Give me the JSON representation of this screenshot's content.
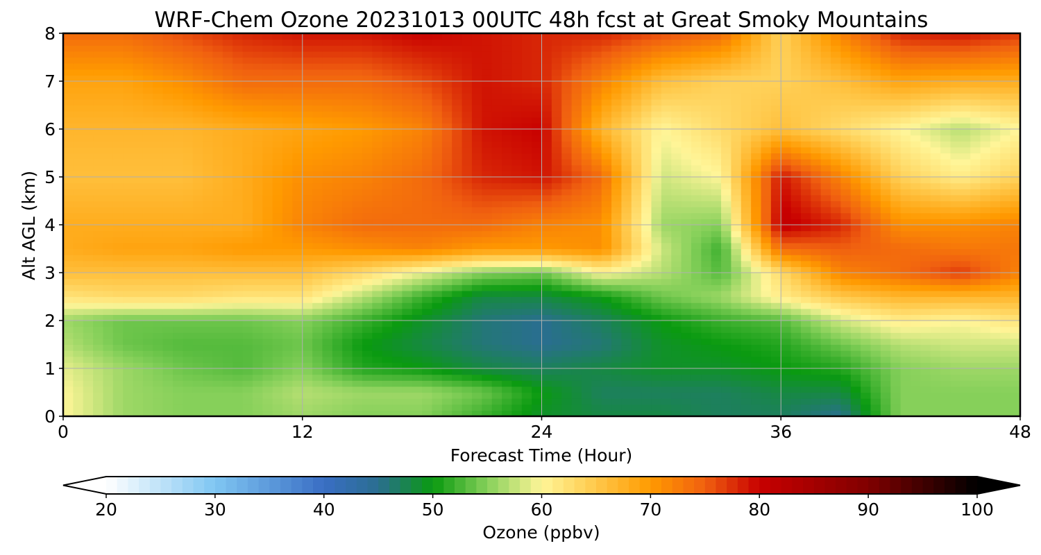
{
  "chart_data": {
    "type": "heatmap",
    "title": "WRF-Chem Ozone  20231013 00UTC 48h fcst at Great Smoky Mountains",
    "xlabel": "Forecast Time (Hour)",
    "ylabel": "Alt AGL (km)",
    "xlim": [
      0,
      48
    ],
    "ylim": [
      0,
      8
    ],
    "xticks": [
      "0",
      "12",
      "24",
      "36",
      "48"
    ],
    "yticks": [
      "0",
      "1",
      "2",
      "3",
      "4",
      "5",
      "6",
      "7",
      "8"
    ],
    "grid": true,
    "colorbar": {
      "label": "Ozone  (ppbv)",
      "min": 20,
      "max": 100,
      "ticks": [
        "20",
        "30",
        "40",
        "50",
        "60",
        "70",
        "80",
        "90",
        "100"
      ],
      "extend": "both",
      "colors": [
        {
          "v": 20,
          "c": "#ffffff"
        },
        {
          "v": 30,
          "c": "#7fc6f2"
        },
        {
          "v": 40,
          "c": "#3a6ec4"
        },
        {
          "v": 45,
          "c": "#2a6e90"
        },
        {
          "v": 50,
          "c": "#0a9a10"
        },
        {
          "v": 55,
          "c": "#86d05a"
        },
        {
          "v": 60,
          "c": "#fff598"
        },
        {
          "v": 65,
          "c": "#ffc84a"
        },
        {
          "v": 70,
          "c": "#ff9a00"
        },
        {
          "v": 75,
          "c": "#f06010"
        },
        {
          "v": 80,
          "c": "#c80000"
        },
        {
          "v": 90,
          "c": "#800000"
        },
        {
          "v": 100,
          "c": "#000000"
        }
      ]
    },
    "x_hours": [
      0,
      3,
      6,
      9,
      12,
      15,
      18,
      21,
      24,
      27,
      30,
      33,
      36,
      39,
      42,
      45,
      48
    ],
    "z_km": [
      0,
      0.5,
      1,
      1.5,
      2,
      2.5,
      3,
      3.5,
      4,
      5,
      6,
      7,
      8
    ],
    "ozone_ppbv": [
      [
        60,
        56,
        55,
        55,
        56,
        55,
        55,
        52,
        49,
        48,
        48,
        47,
        47,
        45,
        55,
        55,
        55
      ],
      [
        60,
        56,
        55,
        55,
        57,
        56,
        56,
        54,
        50,
        47,
        47,
        47,
        48,
        48,
        55,
        55,
        55
      ],
      [
        59,
        56,
        54,
        53,
        55,
        51,
        50,
        48,
        47,
        48,
        49,
        49,
        50,
        51,
        55,
        56,
        56
      ],
      [
        57,
        54,
        53,
        53,
        54,
        50,
        48,
        46,
        45,
        46,
        49,
        50,
        51,
        54,
        57,
        58,
        58
      ],
      [
        56,
        54,
        54,
        54,
        55,
        52,
        49,
        46,
        45,
        47,
        50,
        52,
        53,
        58,
        61,
        60,
        62
      ],
      [
        62,
        63,
        63,
        62,
        62,
        57,
        52,
        48,
        48,
        50,
        54,
        56,
        61,
        65,
        67,
        67,
        67
      ],
      [
        66,
        66,
        66,
        66,
        66,
        63,
        59,
        55,
        54,
        60,
        57,
        53,
        63,
        72,
        74,
        77,
        72
      ],
      [
        68,
        69,
        69,
        70,
        70,
        71,
        72,
        70,
        70,
        71,
        58,
        52,
        74,
        75,
        74,
        73,
        73
      ],
      [
        68,
        68,
        68,
        68,
        72,
        74,
        74,
        74,
        72,
        71,
        56,
        55,
        81,
        78,
        71,
        71,
        72
      ],
      [
        66,
        66,
        66,
        68,
        71,
        72,
        74,
        78,
        79,
        74,
        58,
        60,
        79,
        72,
        64,
        61,
        64
      ],
      [
        67,
        67,
        67,
        68,
        69,
        70,
        72,
        79,
        80,
        67,
        60,
        63,
        66,
        63,
        60,
        57,
        60
      ],
      [
        69,
        69,
        71,
        74,
        74,
        74,
        76,
        79,
        78,
        72,
        66,
        64,
        64,
        66,
        69,
        68,
        68
      ],
      [
        74,
        74,
        76,
        78,
        79,
        79,
        80,
        79,
        78,
        78,
        76,
        74,
        64,
        72,
        78,
        79,
        77
      ]
    ]
  }
}
